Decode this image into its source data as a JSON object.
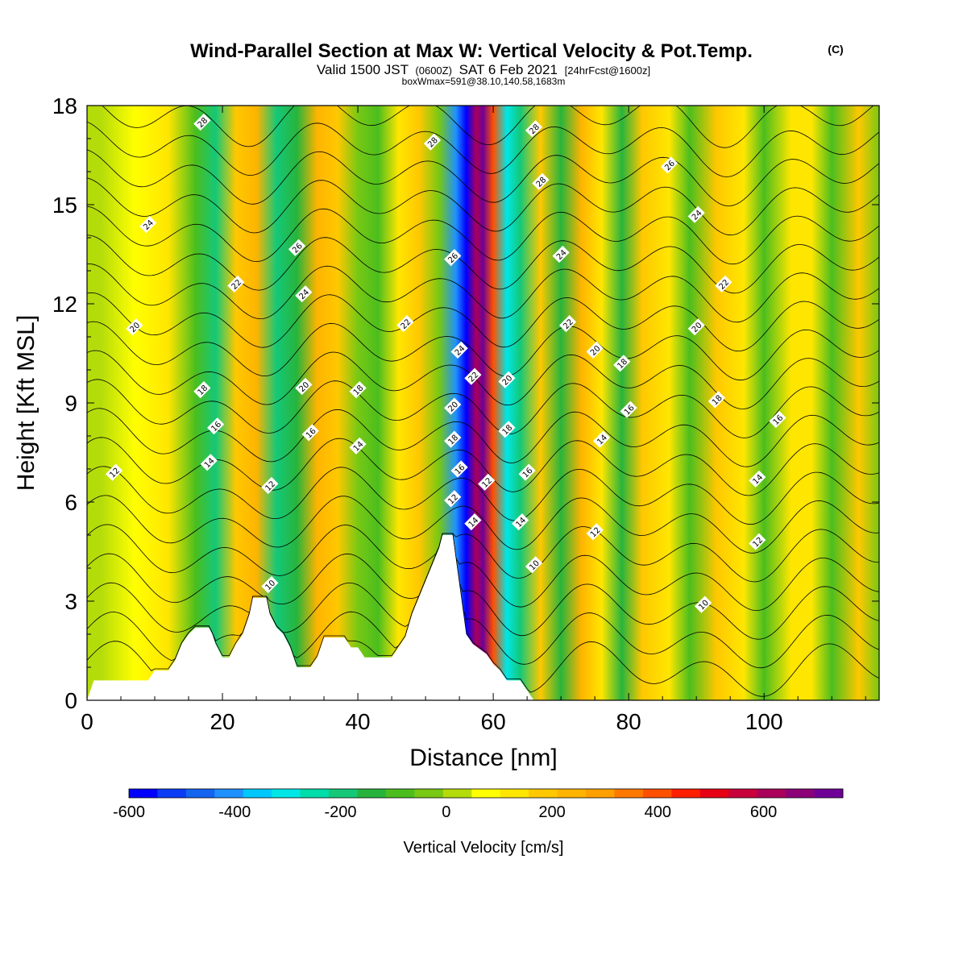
{
  "chart_data": {
    "type": "heatmap",
    "title": "Wind-Parallel Section at Max W: Vertical Velocity & Pot.Temp.",
    "title_suffix": "(C)",
    "subtitle_parts": [
      "Valid 1500 JST",
      "(0600Z)",
      "SAT 6 Feb 2021",
      "[24hrFcst@1600z]"
    ],
    "subtitle2": "boxWmax=591@38.10,140.58,1683m",
    "xlabel": "Distance [nm]",
    "ylabel": "Height [Kft MSL]",
    "xlim": [
      0,
      117
    ],
    "ylim": [
      0,
      18
    ],
    "x_ticks": [
      "0",
      "20",
      "40",
      "60",
      "80",
      "100"
    ],
    "y_ticks": [
      "0",
      "3",
      "6",
      "9",
      "12",
      "15",
      "18"
    ],
    "colorbar": {
      "label": "Vertical Velocity [cm/s]",
      "min": -600,
      "max": 750,
      "step": 50,
      "tick_labels": [
        "-600",
        "-400",
        "-200",
        "0",
        "200",
        "400",
        "600"
      ],
      "colors": [
        "#0000ff",
        "#0a3cf5",
        "#1464f0",
        "#1e90ff",
        "#00c8ff",
        "#00e6e6",
        "#00dcaa",
        "#14c878",
        "#28b43c",
        "#4bbe1e",
        "#78c814",
        "#b4dc0a",
        "#ffff00",
        "#ffe600",
        "#ffc800",
        "#ffb400",
        "#ffa000",
        "#ff7800",
        "#ff5000",
        "#ff1e00",
        "#e60014",
        "#c8003c",
        "#aa005a",
        "#8c0078",
        "#6e0096"
      ]
    },
    "velocity_bands": [
      {
        "x": 2,
        "w": -45
      },
      {
        "x": 7,
        "w": 40
      },
      {
        "x": 12,
        "w": 70
      },
      {
        "x": 16,
        "w": -110
      },
      {
        "x": 19,
        "w": -210
      },
      {
        "x": 22,
        "w": 140
      },
      {
        "x": 25,
        "w": 170
      },
      {
        "x": 28,
        "w": -240
      },
      {
        "x": 31,
        "w": -160
      },
      {
        "x": 34,
        "w": 180
      },
      {
        "x": 37,
        "w": 110
      },
      {
        "x": 40,
        "w": -60
      },
      {
        "x": 43,
        "w": -120
      },
      {
        "x": 46,
        "w": 60
      },
      {
        "x": 49,
        "w": 140
      },
      {
        "x": 52,
        "w": -100
      },
      {
        "x": 54.5,
        "w": -420
      },
      {
        "x": 56,
        "w": -600
      },
      {
        "x": 57.5,
        "w": 500
      },
      {
        "x": 58.5,
        "w": 640
      },
      {
        "x": 60,
        "w": 320
      },
      {
        "x": 62,
        "w": -320
      },
      {
        "x": 64,
        "w": -230
      },
      {
        "x": 67,
        "w": 130
      },
      {
        "x": 70,
        "w": -190
      },
      {
        "x": 73,
        "w": 160
      },
      {
        "x": 76,
        "w": 90
      },
      {
        "x": 79,
        "w": -170
      },
      {
        "x": 82,
        "w": 120
      },
      {
        "x": 86,
        "w": 70
      },
      {
        "x": 89,
        "w": -150
      },
      {
        "x": 93,
        "w": 130
      },
      {
        "x": 97,
        "w": 90
      },
      {
        "x": 100,
        "w": -130
      },
      {
        "x": 104,
        "w": 90
      },
      {
        "x": 107,
        "w": 60
      },
      {
        "x": 110,
        "w": -150
      },
      {
        "x": 114,
        "w": 100
      },
      {
        "x": 117,
        "w": -60
      }
    ],
    "terrain": [
      [
        0,
        0
      ],
      [
        1,
        0.6
      ],
      [
        9,
        0.6
      ],
      [
        10,
        0.9
      ],
      [
        12,
        0.9
      ],
      [
        13,
        1.2
      ],
      [
        14,
        1.7
      ],
      [
        15,
        2
      ],
      [
        16,
        2.2
      ],
      [
        18,
        2.2
      ],
      [
        18.5,
        2
      ],
      [
        19,
        1.7
      ],
      [
        20,
        1.3
      ],
      [
        21,
        1.3
      ],
      [
        22,
        1.7
      ],
      [
        23,
        2
      ],
      [
        24,
        2.6
      ],
      [
        24.5,
        3.1
      ],
      [
        26.5,
        3.1
      ],
      [
        27,
        2.6
      ],
      [
        28,
        2.2
      ],
      [
        29,
        2
      ],
      [
        30,
        1.6
      ],
      [
        31,
        1
      ],
      [
        33,
        1
      ],
      [
        34,
        1.3
      ],
      [
        35,
        1.9
      ],
      [
        38,
        1.9
      ],
      [
        39,
        1.6
      ],
      [
        40,
        1.6
      ],
      [
        41,
        1.3
      ],
      [
        45,
        1.3
      ],
      [
        46,
        1.6
      ],
      [
        47,
        1.9
      ],
      [
        48,
        2.6
      ],
      [
        49,
        3.1
      ],
      [
        50,
        3.6
      ],
      [
        51,
        4.1
      ],
      [
        52,
        4.6
      ],
      [
        52.5,
        5
      ],
      [
        54,
        5
      ],
      [
        55,
        3.5
      ],
      [
        56,
        2
      ],
      [
        57,
        1.7
      ],
      [
        59,
        1.4
      ],
      [
        60,
        1.1
      ],
      [
        61,
        0.9
      ],
      [
        62,
        0.6
      ],
      [
        64,
        0.6
      ],
      [
        65,
        0.3
      ],
      [
        66,
        0
      ],
      [
        117,
        0
      ]
    ],
    "theta_levels": [
      10,
      11,
      12,
      13,
      14,
      15,
      16,
      17,
      18,
      19,
      20,
      21,
      22,
      23,
      24,
      25,
      26,
      27,
      28,
      29
    ],
    "contour_labels": [
      {
        "x": 4,
        "y": 6.9,
        "t": "12"
      },
      {
        "x": 9,
        "y": 14.4,
        "t": "24"
      },
      {
        "x": 7,
        "y": 11.3,
        "t": "20"
      },
      {
        "x": 17,
        "y": 9.4,
        "t": "18"
      },
      {
        "x": 19,
        "y": 8.3,
        "t": "16"
      },
      {
        "x": 18,
        "y": 7.2,
        "t": "14"
      },
      {
        "x": 22,
        "y": 12.6,
        "t": "22"
      },
      {
        "x": 17,
        "y": 17.5,
        "t": "28"
      },
      {
        "x": 27,
        "y": 6.5,
        "t": "12"
      },
      {
        "x": 27,
        "y": 3.5,
        "t": "10"
      },
      {
        "x": 31,
        "y": 13.7,
        "t": "26"
      },
      {
        "x": 32,
        "y": 12.3,
        "t": "24"
      },
      {
        "x": 32,
        "y": 9.5,
        "t": "20"
      },
      {
        "x": 33,
        "y": 8.1,
        "t": "16"
      },
      {
        "x": 40,
        "y": 7.7,
        "t": "14"
      },
      {
        "x": 40,
        "y": 9.4,
        "t": "18"
      },
      {
        "x": 47,
        "y": 11.4,
        "t": "22"
      },
      {
        "x": 51,
        "y": 16.9,
        "t": "28"
      },
      {
        "x": 54,
        "y": 13.4,
        "t": "26"
      },
      {
        "x": 55,
        "y": 10.6,
        "t": "24"
      },
      {
        "x": 54,
        "y": 8.9,
        "t": "20"
      },
      {
        "x": 54,
        "y": 7.9,
        "t": "18"
      },
      {
        "x": 55,
        "y": 7,
        "t": "16"
      },
      {
        "x": 54,
        "y": 6.1,
        "t": "12"
      },
      {
        "x": 57,
        "y": 9.8,
        "t": "22"
      },
      {
        "x": 57,
        "y": 5.4,
        "t": "14"
      },
      {
        "x": 59,
        "y": 6.6,
        "t": "12"
      },
      {
        "x": 62,
        "y": 9.7,
        "t": "20"
      },
      {
        "x": 62,
        "y": 8.2,
        "t": "18"
      },
      {
        "x": 65,
        "y": 6.9,
        "t": "16"
      },
      {
        "x": 64,
        "y": 5.4,
        "t": "14"
      },
      {
        "x": 66,
        "y": 4.1,
        "t": "10"
      },
      {
        "x": 66,
        "y": 17.3,
        "t": "28"
      },
      {
        "x": 67,
        "y": 15.7,
        "t": "28"
      },
      {
        "x": 70,
        "y": 13.5,
        "t": "24"
      },
      {
        "x": 71,
        "y": 11.4,
        "t": "22"
      },
      {
        "x": 75,
        "y": 10.6,
        "t": "20"
      },
      {
        "x": 79,
        "y": 10.2,
        "t": "18"
      },
      {
        "x": 80,
        "y": 8.8,
        "t": "16"
      },
      {
        "x": 76,
        "y": 7.9,
        "t": "14"
      },
      {
        "x": 75,
        "y": 5.1,
        "t": "12"
      },
      {
        "x": 86,
        "y": 16.2,
        "t": "26"
      },
      {
        "x": 90,
        "y": 14.7,
        "t": "24"
      },
      {
        "x": 94,
        "y": 12.6,
        "t": "22"
      },
      {
        "x": 90,
        "y": 11.3,
        "t": "20"
      },
      {
        "x": 93,
        "y": 9.1,
        "t": "18"
      },
      {
        "x": 102,
        "y": 8.5,
        "t": "16"
      },
      {
        "x": 99,
        "y": 6.7,
        "t": "14"
      },
      {
        "x": 99,
        "y": 4.8,
        "t": "12"
      },
      {
        "x": 91,
        "y": 2.9,
        "t": "10"
      }
    ]
  }
}
